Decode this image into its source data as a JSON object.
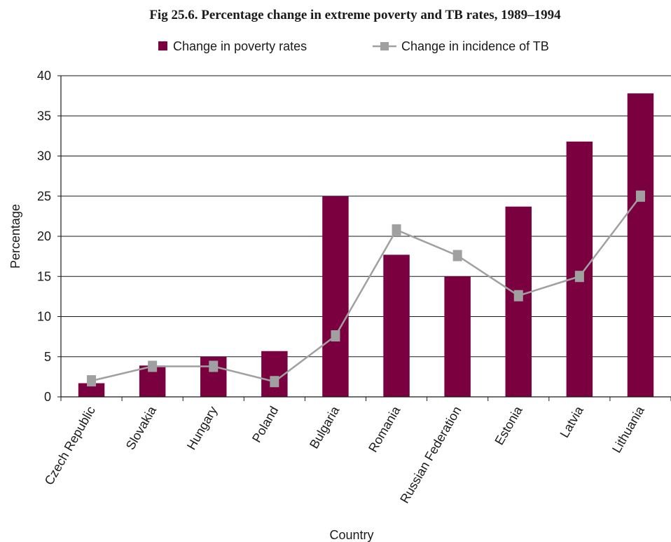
{
  "chart_data": {
    "type": "bar",
    "title": "Fig 25.6. Percentage change in extreme poverty and TB rates, 1989–1994",
    "xlabel": "Country",
    "ylabel": "Percentage",
    "ylim": [
      0,
      40
    ],
    "yticks": [
      0,
      5,
      10,
      15,
      20,
      25,
      30,
      35,
      40
    ],
    "grid": true,
    "legend_position": "top",
    "categories": [
      "Czech Republic",
      "Slovakia",
      "Hungary",
      "Poland",
      "Bulgaria",
      "Romania",
      "Russian Federation",
      "Estonia",
      "Latvia",
      "Lithuania"
    ],
    "series": [
      {
        "name": "Change in poverty rates",
        "type": "bar",
        "color": "#7a0040",
        "values": [
          1.7,
          3.9,
          5.0,
          5.7,
          25.0,
          17.7,
          15.0,
          23.7,
          31.8,
          37.8
        ]
      },
      {
        "name": "Change in incidence of TB",
        "type": "line",
        "color": "#a0a0a0",
        "marker": "square",
        "values": [
          2.0,
          3.8,
          3.8,
          1.9,
          7.6,
          20.8,
          17.6,
          12.6,
          15.0,
          25.0
        ]
      }
    ]
  }
}
